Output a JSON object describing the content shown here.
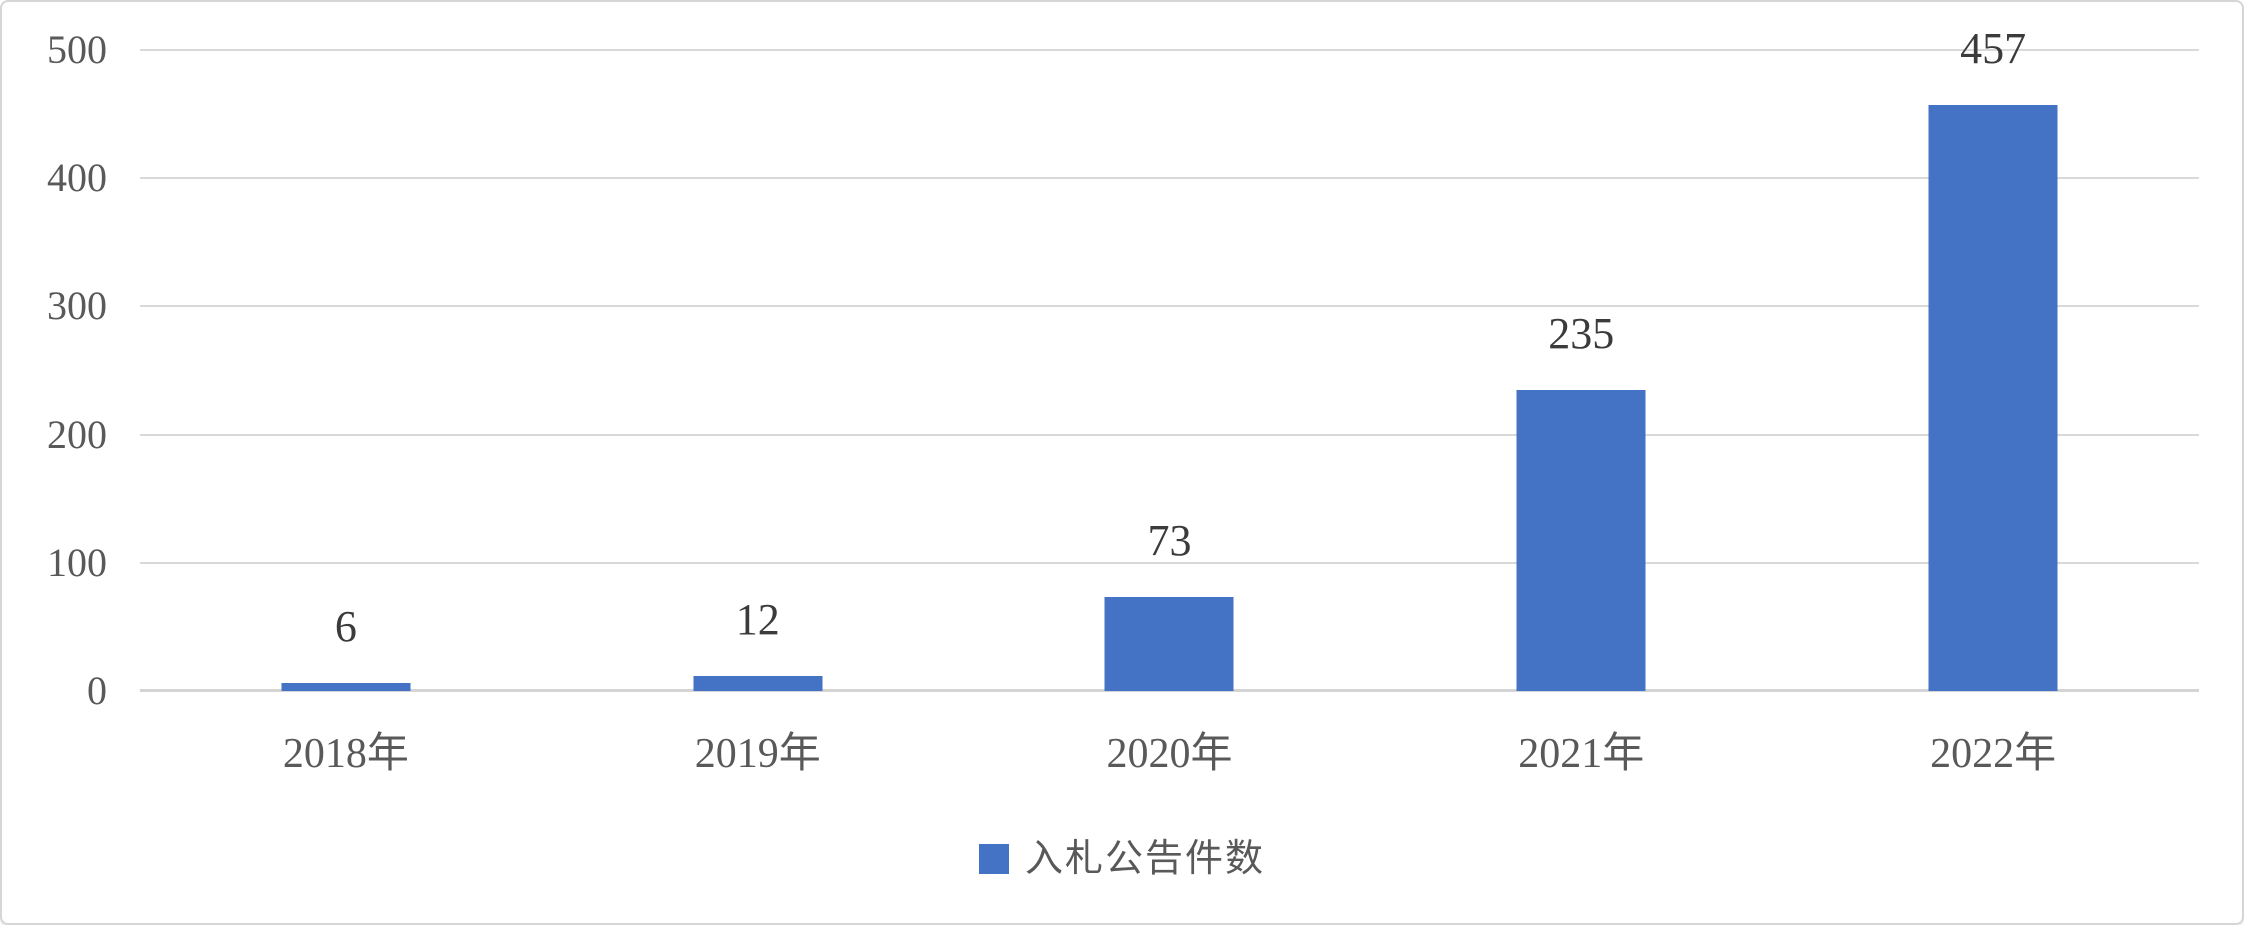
{
  "chart_data": {
    "type": "bar",
    "title": "",
    "xlabel": "",
    "ylabel": "",
    "categories": [
      "2018年",
      "2019年",
      "2020年",
      "2021年",
      "2022年"
    ],
    "series": [
      {
        "name": "入札公告件数",
        "values": [
          6,
          12,
          73,
          235,
          457
        ],
        "data_labels": [
          "6",
          "12",
          "73",
          "235",
          "457"
        ],
        "color": "#4472C4"
      }
    ],
    "y_ticks": [
      0,
      100,
      200,
      300,
      400,
      500
    ],
    "ylim": [
      0,
      500
    ],
    "grid": "horizontal",
    "gridline_color": "#d9d9d9",
    "axis_text_color": "#595959",
    "data_label_color": "#3b3b3b",
    "legend_position": "bottom",
    "legend_label": "入札公告件数"
  }
}
